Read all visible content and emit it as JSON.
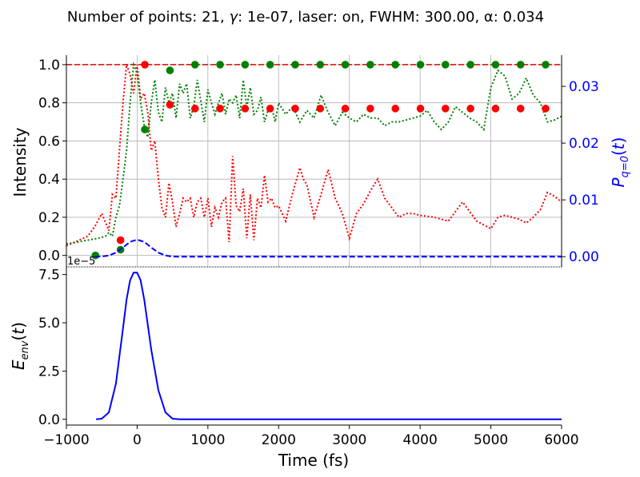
{
  "figure": {
    "title_prefix": "Number of points: 21, ",
    "title_gamma": "γ",
    "title_suffix": ": 1e-07, laser: on, FWHM: 300.00, α: 0.034"
  },
  "chart_data": [
    {
      "type": "line",
      "panel": "top",
      "ylabel": "Intensity",
      "y2label": "P_{q=0}(t)",
      "xlim": [
        -1000,
        6000
      ],
      "ylim": [
        -0.06,
        1.05
      ],
      "y2lim": [
        -0.0018,
        0.0355
      ],
      "yticks": [
        0.0,
        0.2,
        0.4,
        0.6,
        0.8,
        1.0
      ],
      "yticklabels": [
        "0.0",
        "0.2",
        "0.4",
        "0.6",
        "0.8",
        "1.0"
      ],
      "y2ticks": [
        0.0,
        0.01,
        0.02,
        0.03
      ],
      "y2ticklabels": [
        "0.00",
        "0.01",
        "0.02",
        "0.03"
      ],
      "xticks": [
        0,
        1000,
        2000,
        3000,
        4000,
        5000,
        6000
      ],
      "grid": true,
      "hline": {
        "y": 1.0,
        "color": "#dd0000",
        "style": "dashed"
      },
      "colors": {
        "red": "#ff0000",
        "green": "#008000",
        "blue": "#0000ff",
        "y2_axis": "#0000ff"
      },
      "series": [
        {
          "kind": "dotted-line",
          "color": "#ff0000",
          "x": [
            -1000,
            -700,
            -600,
            -500,
            -400,
            -350,
            -300,
            -250,
            -200,
            -150,
            -100,
            -50,
            0,
            50,
            100,
            150,
            200,
            250,
            300,
            350,
            400,
            450,
            500,
            550,
            600,
            650,
            700,
            750,
            800,
            850,
            900,
            950,
            1000,
            1050,
            1100,
            1150,
            1200,
            1250,
            1300,
            1350,
            1400,
            1450,
            1500,
            1550,
            1600,
            1650,
            1700,
            1750,
            1800,
            1850,
            1900,
            1950,
            2000,
            2100,
            2200,
            2300,
            2350,
            2400,
            2500,
            2600,
            2700,
            2800,
            2900,
            3000,
            3100,
            3200,
            3300,
            3400,
            3500,
            3600,
            3700,
            3800,
            3900,
            4000,
            4200,
            4400,
            4600,
            4800,
            5000,
            5100,
            5200,
            5300,
            5400,
            5500,
            5600,
            5700,
            5800,
            5900,
            6000
          ],
          "y": [
            0.05,
            0.1,
            0.15,
            0.22,
            0.13,
            0.32,
            0.3,
            0.55,
            0.8,
            1.0,
            0.95,
            0.85,
            1.0,
            0.82,
            0.85,
            0.75,
            0.55,
            0.6,
            0.4,
            0.25,
            0.2,
            0.38,
            0.28,
            0.15,
            0.22,
            0.3,
            0.28,
            0.3,
            0.2,
            0.28,
            0.3,
            0.2,
            0.3,
            0.15,
            0.25,
            0.2,
            0.28,
            0.3,
            0.07,
            0.52,
            0.26,
            0.23,
            0.35,
            0.09,
            0.32,
            0.08,
            0.3,
            0.25,
            0.42,
            0.28,
            0.3,
            0.25,
            0.26,
            0.18,
            0.33,
            0.46,
            0.4,
            0.37,
            0.2,
            0.32,
            0.45,
            0.3,
            0.22,
            0.09,
            0.22,
            0.27,
            0.34,
            0.4,
            0.3,
            0.25,
            0.2,
            0.22,
            0.22,
            0.21,
            0.2,
            0.18,
            0.28,
            0.18,
            0.14,
            0.2,
            0.21,
            0.2,
            0.19,
            0.17,
            0.2,
            0.24,
            0.33,
            0.31,
            0.28
          ]
        },
        {
          "kind": "dotted-line",
          "color": "#008000",
          "x": [
            -1000,
            -700,
            -550,
            -450,
            -400,
            -350,
            -300,
            -250,
            -200,
            -150,
            -100,
            -50,
            0,
            50,
            100,
            150,
            200,
            250,
            300,
            350,
            400,
            450,
            500,
            550,
            600,
            650,
            700,
            750,
            800,
            850,
            900,
            950,
            1000,
            1050,
            1100,
            1150,
            1200,
            1250,
            1300,
            1350,
            1400,
            1450,
            1500,
            1550,
            1600,
            1650,
            1700,
            1750,
            1800,
            1850,
            1900,
            1950,
            2000,
            2100,
            2200,
            2300,
            2400,
            2500,
            2600,
            2700,
            2800,
            2900,
            3000,
            3100,
            3200,
            3300,
            3400,
            3500,
            3600,
            3700,
            3800,
            3900,
            4000,
            4100,
            4200,
            4300,
            4400,
            4500,
            4600,
            4700,
            4800,
            4900,
            5000,
            5100,
            5200,
            5300,
            5400,
            5500,
            5600,
            5700,
            5800,
            5900,
            6000
          ],
          "y": [
            0.06,
            0.08,
            0.09,
            0.1,
            0.12,
            0.1,
            0.2,
            0.26,
            0.4,
            0.55,
            0.8,
            1.0,
            0.96,
            0.8,
            0.68,
            0.62,
            0.8,
            0.92,
            0.75,
            0.7,
            0.88,
            0.8,
            0.85,
            0.72,
            0.9,
            0.85,
            0.9,
            0.72,
            0.78,
            0.92,
            0.81,
            0.7,
            0.87,
            0.8,
            0.74,
            0.8,
            0.85,
            0.74,
            0.82,
            0.8,
            0.84,
            0.72,
            0.92,
            0.78,
            0.88,
            0.74,
            0.76,
            0.83,
            0.7,
            0.76,
            0.78,
            0.7,
            0.8,
            0.74,
            0.78,
            0.7,
            0.76,
            0.72,
            0.84,
            0.75,
            0.68,
            0.75,
            0.72,
            0.7,
            0.74,
            0.72,
            0.72,
            0.68,
            0.7,
            0.7,
            0.71,
            0.72,
            0.73,
            0.76,
            0.7,
            0.66,
            0.7,
            0.78,
            0.75,
            0.72,
            0.7,
            0.66,
            0.88,
            0.97,
            0.94,
            0.82,
            0.85,
            0.93,
            0.84,
            0.8,
            0.7,
            0.71,
            0.73
          ]
        },
        {
          "kind": "markers",
          "color": "#ff0000",
          "x": [
            -235,
            109,
            464,
            818,
            1172,
            1526,
            1880,
            2234,
            2588,
            2942,
            3296,
            3650,
            4004,
            4358,
            4712,
            5066,
            5420,
            5774
          ],
          "y": [
            0.08,
            1.0,
            0.79,
            0.77,
            0.77,
            0.77,
            0.77,
            0.77,
            0.77,
            0.77,
            0.77,
            0.77,
            0.77,
            0.77,
            0.77,
            0.77,
            0.77,
            0.77
          ]
        },
        {
          "kind": "markers",
          "color": "#008000",
          "x": [
            -590,
            -235,
            109,
            464,
            818,
            1172,
            1526,
            1880,
            2234,
            2588,
            2942,
            3296,
            3650,
            4004,
            4358,
            4712,
            5066,
            5420,
            5774
          ],
          "y": [
            0.0,
            0.03,
            0.66,
            0.97,
            1.0,
            1.0,
            1.0,
            1.0,
            1.0,
            1.0,
            1.0,
            1.0,
            1.0,
            1.0,
            1.0,
            1.0,
            1.0,
            1.0,
            1.0
          ]
        },
        {
          "kind": "dashed-line",
          "color": "#0000ff",
          "axis": "right",
          "note_x": "gaussian centred at 0 fs",
          "x": [
            -600,
            -500,
            -400,
            -300,
            -200,
            -100,
            0,
            100,
            200,
            300,
            400,
            500,
            600,
            1000,
            2000,
            3000,
            4000,
            5000,
            6000
          ],
          "y": [
            0.0,
            2e-05,
            0.0002,
            0.0007,
            0.0016,
            0.0026,
            0.003,
            0.0026,
            0.0016,
            0.0007,
            0.0002,
            2e-05,
            0.0,
            0.0,
            0.0,
            0.0,
            0.0,
            0.0,
            0.0
          ]
        }
      ]
    },
    {
      "type": "line",
      "panel": "bottom",
      "ylabel": "E_{env}(t)",
      "xlabel": "Time (fs)",
      "offset_label": "1e−5",
      "xlim": [
        -1000,
        6000
      ],
      "ylim": [
        -0.3,
        7.9
      ],
      "yticks": [
        0.0,
        2.5,
        5.0,
        7.5
      ],
      "yticklabels": [
        "0.0",
        "2.5",
        "5.0",
        "7.5"
      ],
      "xticks": [
        -1000,
        0,
        1000,
        2000,
        3000,
        4000,
        5000,
        6000
      ],
      "xticklabels": [
        "−1000",
        "0",
        "1000",
        "2000",
        "3000",
        "4000",
        "5000",
        "6000"
      ],
      "series": [
        {
          "kind": "solid-line",
          "color": "#0000ff",
          "x": [
            -580,
            -500,
            -400,
            -300,
            -200,
            -150,
            -100,
            -50,
            0,
            50,
            100,
            150,
            200,
            300,
            400,
            500,
            600,
            800,
            1000,
            2000,
            3000,
            4000,
            5000,
            6000
          ],
          "y": [
            0.0,
            0.03,
            0.36,
            1.85,
            4.7,
            6.2,
            7.2,
            7.6,
            7.6,
            7.2,
            6.2,
            4.9,
            3.6,
            1.5,
            0.36,
            0.03,
            0.0,
            0.0,
            0.0,
            0.0,
            0.0,
            0.0,
            0.0,
            0.0
          ]
        }
      ]
    }
  ]
}
